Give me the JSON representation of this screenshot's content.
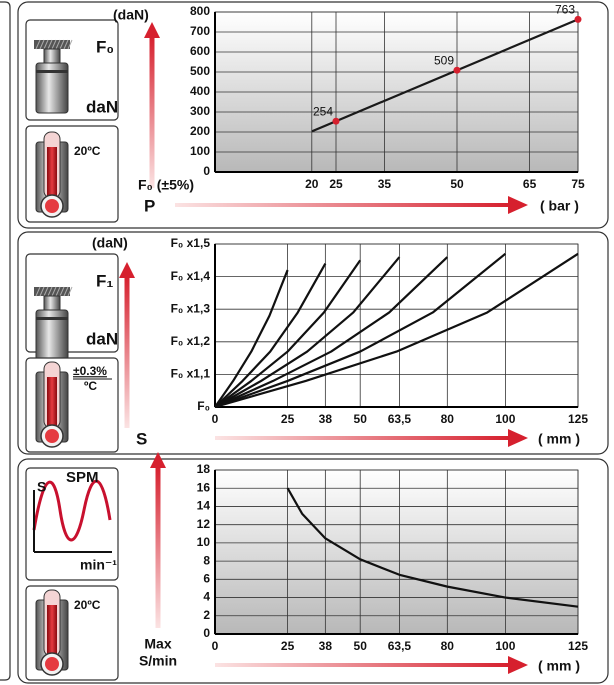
{
  "chart_data": [
    {
      "type": "line",
      "y_label": "(daN)",
      "y_note": "F₀ (±5%)",
      "x_label": "P",
      "x_unit": "( bar )",
      "xlim": [
        0,
        75
      ],
      "xticks": [
        20,
        25,
        35,
        50,
        65,
        75
      ],
      "ylim": [
        0,
        800
      ],
      "yticks": [
        0,
        100,
        200,
        300,
        400,
        500,
        600,
        700,
        800
      ],
      "grid": true,
      "series": [
        {
          "color": "#1a1a1a",
          "style": "line",
          "x": [
            20,
            75
          ],
          "values": [
            203,
            763
          ]
        },
        {
          "color": "#d6202e",
          "style": "points",
          "x": [
            25,
            50,
            75
          ],
          "values": [
            254,
            509,
            763
          ]
        }
      ]
    },
    {
      "type": "line",
      "y_label": "(daN)",
      "x_label": "S",
      "x_unit": "( mm )",
      "xlim": [
        0,
        125
      ],
      "xticks": [
        0,
        25,
        38,
        50,
        {
          "value": 63.5,
          "label": "63,5"
        },
        80,
        100,
        125
      ],
      "ylim": [
        1,
        1.5
      ],
      "yticks": [
        {
          "value": 1,
          "label": "F₀"
        },
        {
          "value": 1.1,
          "label": "F₀ x1,1"
        },
        {
          "value": 1.2,
          "label": "F₀ x1,2"
        },
        {
          "value": 1.3,
          "label": "F₀ x1,3"
        },
        {
          "value": 1.4,
          "label": "F₀ x1,4"
        },
        {
          "value": 1.5,
          "label": "F₀ x1,5"
        }
      ],
      "grid": true,
      "series": [
        {
          "color": "#111",
          "style": "line",
          "x": [
            0,
            6.25,
            12.5,
            18.75,
            25
          ],
          "values": [
            1,
            1.08,
            1.17,
            1.28,
            1.42
          ]
        },
        {
          "color": "#111",
          "style": "line",
          "x": [
            0,
            9.5,
            19,
            28.5,
            38
          ],
          "values": [
            1,
            1.08,
            1.17,
            1.29,
            1.44
          ]
        },
        {
          "color": "#111",
          "style": "line",
          "x": [
            0,
            12.5,
            25,
            37.5,
            50
          ],
          "values": [
            1,
            1.08,
            1.17,
            1.29,
            1.45
          ]
        },
        {
          "color": "#111",
          "style": "line",
          "x": [
            0,
            15.875,
            31.75,
            47.625,
            63.5
          ],
          "values": [
            1,
            1.08,
            1.17,
            1.29,
            1.46
          ]
        },
        {
          "color": "#111",
          "style": "line",
          "x": [
            0,
            20,
            40,
            60,
            80
          ],
          "values": [
            1,
            1.08,
            1.17,
            1.29,
            1.46
          ]
        },
        {
          "color": "#111",
          "style": "line",
          "x": [
            0,
            25,
            50,
            75,
            100
          ],
          "values": [
            1,
            1.08,
            1.17,
            1.29,
            1.47
          ]
        },
        {
          "color": "#111",
          "style": "line",
          "x": [
            0,
            31.25,
            62.5,
            93.75,
            125
          ],
          "values": [
            1,
            1.08,
            1.17,
            1.29,
            1.47
          ]
        }
      ]
    },
    {
      "type": "line",
      "y_label": [
        "Max",
        "S/min"
      ],
      "x_unit": "( mm )",
      "xlim": [
        0,
        125
      ],
      "xticks": [
        0,
        25,
        38,
        50,
        {
          "value": 63.5,
          "label": "63,5"
        },
        80,
        100,
        125
      ],
      "ylim": [
        0,
        18
      ],
      "yticks": [
        0,
        2,
        4,
        6,
        8,
        10,
        12,
        14,
        16,
        18
      ],
      "grid": true,
      "series": [
        {
          "color": "#111",
          "style": "line",
          "x": [
            25,
            30,
            38,
            50,
            63.5,
            80,
            100,
            125
          ],
          "values": [
            16,
            13.2,
            10.5,
            8.2,
            6.5,
            5.2,
            4,
            3
          ]
        }
      ]
    }
  ],
  "icons": [
    {
      "force": "F₀",
      "unit": "daN",
      "temp": "20ºC"
    },
    {
      "force": "F₁",
      "unit": "daN",
      "tol": "±0.3%",
      "tol_unit": "ºC"
    },
    {
      "stroke": "S",
      "spm": "SPM",
      "unit": "min⁻¹",
      "temp": "20ºC"
    }
  ]
}
